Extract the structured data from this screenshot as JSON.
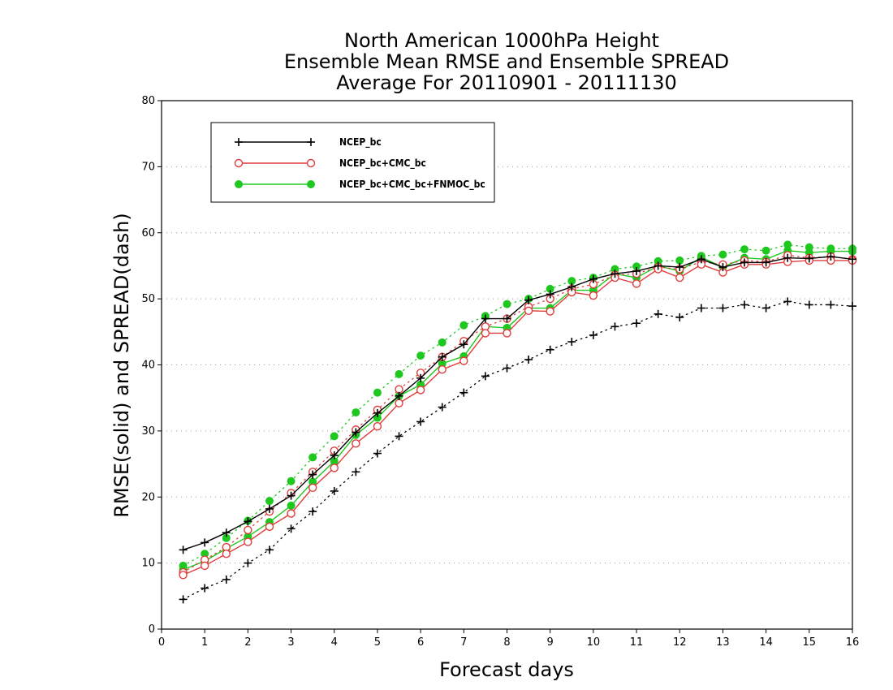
{
  "chart_data": {
    "type": "line",
    "title": [
      "North American 1000hPa Height",
      "Ensemble Mean RMSE and Ensemble SPREAD",
      "Average For 20110901 - 20111130"
    ],
    "xlabel": "Forecast days",
    "ylabel": "RMSE(solid) and SPREAD(dash)",
    "xlim": [
      0,
      16
    ],
    "ylim": [
      0,
      80
    ],
    "xticks": [
      "0",
      "1",
      "2",
      "3",
      "4",
      "5",
      "6",
      "7",
      "8",
      "9",
      "10",
      "11",
      "12",
      "13",
      "14",
      "15",
      "16"
    ],
    "yticks": [
      "0",
      "10",
      "20",
      "30",
      "40",
      "50",
      "60",
      "70",
      "80"
    ],
    "grid": "horizontal dotted",
    "legend_position": "top-left",
    "x": [
      0.5,
      1.0,
      1.5,
      2.0,
      2.5,
      3.0,
      3.5,
      4.0,
      4.5,
      5.0,
      5.5,
      6.0,
      6.5,
      7.0,
      7.5,
      8.0,
      8.5,
      9.0,
      9.5,
      10.0,
      10.5,
      11.0,
      11.5,
      12.0,
      12.5,
      13.0,
      13.5,
      14.0,
      14.5,
      15.0,
      15.5,
      16.0
    ],
    "series": [
      {
        "name": "NCEP_bc",
        "color": "#000000",
        "marker": "plus",
        "rmse": [
          12.0,
          13.1,
          14.6,
          16.3,
          18.2,
          20.2,
          23.4,
          26.3,
          29.8,
          32.7,
          35.3,
          38.0,
          41.2,
          43.1,
          47.0,
          47.0,
          49.8,
          50.7,
          51.8,
          53.0,
          53.8,
          54.2,
          55.0,
          54.8,
          56.0,
          54.8,
          55.5,
          55.5,
          56.2,
          56.1,
          56.4,
          56.0
        ],
        "spread": [
          4.5,
          6.2,
          7.5,
          10.0,
          12.0,
          15.2,
          17.8,
          20.9,
          23.8,
          26.6,
          29.2,
          31.4,
          33.6,
          35.8,
          38.3,
          39.5,
          40.8,
          42.3,
          43.5,
          44.5,
          45.8,
          46.3,
          47.7,
          47.2,
          48.6,
          48.6,
          49.1,
          48.6,
          49.6,
          49.1,
          49.1,
          48.9
        ]
      },
      {
        "name": "NCEP_bc+CMC_bc",
        "color": "#e03c3c",
        "marker": "open-circle",
        "rmse": [
          8.2,
          9.6,
          11.4,
          13.2,
          15.5,
          17.5,
          21.4,
          24.4,
          28.1,
          30.7,
          34.2,
          36.2,
          39.3,
          40.6,
          44.8,
          44.8,
          48.2,
          48.1,
          51.0,
          50.5,
          53.2,
          52.3,
          54.5,
          53.2,
          55.2,
          54.0,
          55.2,
          55.2,
          55.6,
          55.8,
          55.8,
          55.8
        ],
        "spread": [
          8.6,
          10.5,
          12.4,
          15.0,
          17.8,
          20.6,
          23.8,
          27.0,
          30.2,
          33.2,
          36.3,
          38.8,
          41.2,
          43.6,
          45.8,
          47.0,
          48.8,
          50.0,
          51.5,
          52.2,
          53.6,
          53.8,
          54.8,
          54.5,
          55.6,
          55.2,
          55.8,
          55.6,
          56.6,
          56.2,
          56.4,
          56.0
        ]
      },
      {
        "name": "NCEP_bc+CMC_bc+FNMOC_bc",
        "color": "#1ec81e",
        "marker": "filled-circle",
        "rmse": [
          9.0,
          10.3,
          12.2,
          14.0,
          16.2,
          18.7,
          22.3,
          25.4,
          29.4,
          32.0,
          35.3,
          37.0,
          40.2,
          41.3,
          45.8,
          45.6,
          48.6,
          48.6,
          51.3,
          51.3,
          53.8,
          53.2,
          55.0,
          54.2,
          56.3,
          54.8,
          56.2,
          56.0,
          57.3,
          57.0,
          57.2,
          57.2
        ],
        "spread": [
          9.6,
          11.4,
          13.8,
          16.4,
          19.4,
          22.4,
          26.0,
          29.2,
          32.8,
          35.8,
          38.6,
          41.4,
          43.4,
          46.0,
          47.4,
          49.2,
          50.0,
          51.5,
          52.7,
          53.2,
          54.5,
          54.9,
          55.7,
          55.8,
          56.5,
          56.7,
          57.5,
          57.3,
          58.2,
          57.8,
          57.6,
          57.6
        ]
      }
    ]
  }
}
